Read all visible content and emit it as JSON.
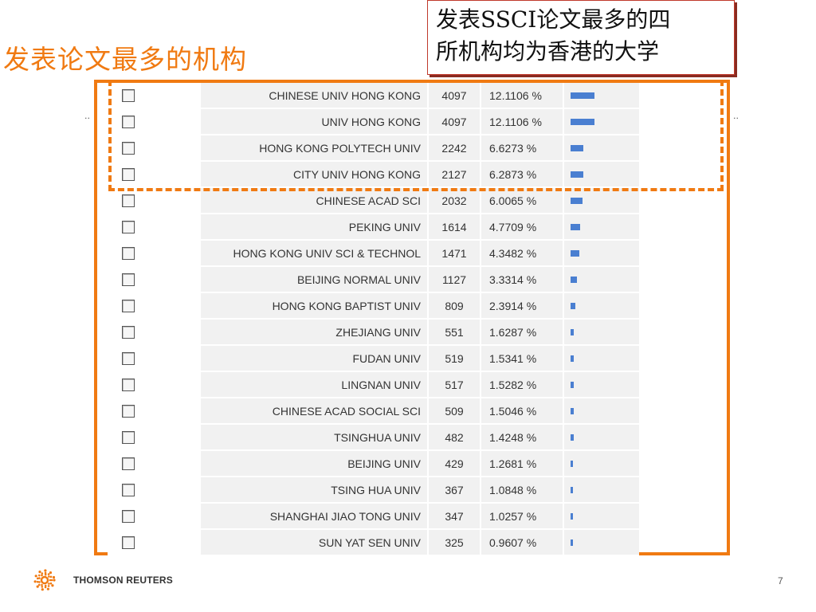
{
  "slide": {
    "title": "发表论文最多的机构",
    "callout": "发表SSCI论文最多的四\n所机构均为香港的大学",
    "page_number": "7"
  },
  "footer": {
    "brand": "THOMSON REUTERS"
  },
  "colors": {
    "accent": "#f07a12",
    "bar": "#4a7fd1",
    "callout_border": "#c0392b"
  },
  "table": {
    "max_percent": 12.1106,
    "rows": [
      {
        "name": "CHINESE UNIV HONG KONG",
        "count": "4097",
        "percent": "12.1106 %",
        "value": 12.1106
      },
      {
        "name": "UNIV HONG KONG",
        "count": "4097",
        "percent": "12.1106 %",
        "value": 12.1106
      },
      {
        "name": "HONG KONG POLYTECH UNIV",
        "count": "2242",
        "percent": "6.6273 %",
        "value": 6.6273
      },
      {
        "name": "CITY UNIV HONG KONG",
        "count": "2127",
        "percent": "6.2873 %",
        "value": 6.2873
      },
      {
        "name": "CHINESE ACAD SCI",
        "count": "2032",
        "percent": "6.0065 %",
        "value": 6.0065
      },
      {
        "name": "PEKING UNIV",
        "count": "1614",
        "percent": "4.7709 %",
        "value": 4.7709
      },
      {
        "name": "HONG KONG UNIV SCI & TECHNOL",
        "count": "1471",
        "percent": "4.3482 %",
        "value": 4.3482
      },
      {
        "name": "BEIJING NORMAL UNIV",
        "count": "1127",
        "percent": "3.3314 %",
        "value": 3.3314
      },
      {
        "name": "HONG KONG BAPTIST UNIV",
        "count": "809",
        "percent": "2.3914 %",
        "value": 2.3914
      },
      {
        "name": "ZHEJIANG UNIV",
        "count": "551",
        "percent": "1.6287 %",
        "value": 1.6287
      },
      {
        "name": "FUDAN UNIV",
        "count": "519",
        "percent": "1.5341 %",
        "value": 1.5341
      },
      {
        "name": "LINGNAN UNIV",
        "count": "517",
        "percent": "1.5282 %",
        "value": 1.5282
      },
      {
        "name": "CHINESE ACAD SOCIAL SCI",
        "count": "509",
        "percent": "1.5046 %",
        "value": 1.5046
      },
      {
        "name": "TSINGHUA UNIV",
        "count": "482",
        "percent": "1.4248 %",
        "value": 1.4248
      },
      {
        "name": "BEIJING UNIV",
        "count": "429",
        "percent": "1.2681 %",
        "value": 1.2681
      },
      {
        "name": "TSING HUA UNIV",
        "count": "367",
        "percent": "1.0848 %",
        "value": 1.0848
      },
      {
        "name": "SHANGHAI JIAO TONG UNIV",
        "count": "347",
        "percent": "1.0257 %",
        "value": 1.0257
      },
      {
        "name": "SUN YAT SEN UNIV",
        "count": "325",
        "percent": "0.9607 %",
        "value": 0.9607
      }
    ]
  }
}
